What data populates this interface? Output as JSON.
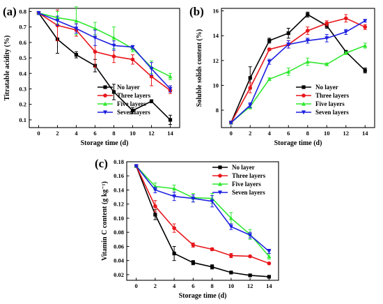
{
  "figure": {
    "legend_labels": [
      "No layer",
      "Three layers",
      "Five layers",
      "Seven layers"
    ]
  },
  "colors": {
    "No layer": "#000000",
    "Three layers": "#e8161b",
    "Five layers": "#2fe82f",
    "Seven layers": "#1c1fe0"
  },
  "chart_data": [
    {
      "type": "line",
      "panel_label": "(a)",
      "xlabel": "Storage time (d)",
      "ylabel": "Titratable acidity (%)",
      "xlim": [
        -1,
        15
      ],
      "ylim": [
        0.05,
        0.82
      ],
      "xticks": [
        "0",
        "2",
        "4",
        "6",
        "8",
        "10",
        "12",
        "14"
      ],
      "yticks": [
        "0.1",
        "0.2",
        "0.3",
        "0.4",
        "0.5",
        "0.6",
        "0.7",
        "0.8"
      ],
      "x": [
        0,
        2,
        4,
        6,
        8,
        10,
        12,
        14
      ],
      "legend_position": "bottom-right",
      "series": [
        {
          "name": "No layer",
          "values": [
            0.79,
            0.62,
            0.52,
            0.45,
            0.28,
            0.16,
            0.22,
            0.1
          ],
          "errors": [
            0.01,
            0.09,
            0.02,
            0.04,
            0.05,
            0.02,
            0.01,
            0.03
          ]
        },
        {
          "name": "Three layers",
          "values": [
            0.79,
            0.71,
            0.68,
            0.54,
            0.51,
            0.49,
            0.38,
            0.29
          ],
          "errors": [
            0.01,
            0.1,
            0.04,
            0.1,
            0.04,
            0.03,
            0.06,
            0.02
          ]
        },
        {
          "name": "Five layers",
          "values": [
            0.79,
            0.76,
            0.74,
            0.69,
            0.63,
            0.56,
            0.44,
            0.38
          ],
          "errors": [
            0.01,
            0.04,
            0.09,
            0.04,
            0.07,
            0.02,
            0.04,
            0.02
          ]
        },
        {
          "name": "Seven layers",
          "values": [
            0.79,
            0.74,
            0.69,
            0.63,
            0.58,
            0.57,
            0.43,
            0.3
          ],
          "errors": [
            0.01,
            0.03,
            0.03,
            0.05,
            0.03,
            0.01,
            0.04,
            0.02
          ]
        }
      ]
    },
    {
      "type": "line",
      "panel_label": "(b)",
      "xlabel": "Storage time (d)",
      "ylabel": "Soluble solids content (%)",
      "xlim": [
        -1,
        15
      ],
      "ylim": [
        6.6,
        16.2
      ],
      "xticks": [
        "0",
        "2",
        "4",
        "6",
        "8",
        "10",
        "12",
        "14"
      ],
      "yticks": [
        "8",
        "10",
        "12",
        "14",
        "16"
      ],
      "x": [
        0,
        2,
        4,
        6,
        8,
        10,
        12,
        14
      ],
      "legend_position": "bottom-right",
      "series": [
        {
          "name": "No layer",
          "values": [
            7.0,
            10.6,
            13.6,
            14.2,
            15.7,
            14.8,
            12.7,
            11.2
          ],
          "errors": [
            0.1,
            0.9,
            0.2,
            0.4,
            0.2,
            0.2,
            0.1,
            0.2
          ]
        },
        {
          "name": "Three layers",
          "values": [
            7.0,
            9.8,
            12.9,
            13.3,
            14.4,
            15.0,
            15.4,
            14.7
          ],
          "errors": [
            0.1,
            0.4,
            0.1,
            0.3,
            0.3,
            0.2,
            0.3,
            0.2
          ]
        },
        {
          "name": "Five layers",
          "values": [
            7.0,
            8.3,
            10.5,
            11.1,
            11.9,
            11.7,
            12.6,
            13.2
          ],
          "errors": [
            0.1,
            0.2,
            0.1,
            0.3,
            0.3,
            0.1,
            0.1,
            0.2
          ]
        },
        {
          "name": "Seven layers",
          "values": [
            7.0,
            8.4,
            11.9,
            13.3,
            13.6,
            13.8,
            14.3,
            15.2
          ],
          "errors": [
            0.1,
            0.2,
            0.2,
            0.3,
            0.2,
            0.3,
            0.2,
            0.1
          ]
        }
      ]
    },
    {
      "type": "line",
      "panel_label": "(c)",
      "xlabel": "Storage time (d)",
      "ylabel": "Vitamin C content (g kg⁻¹)",
      "xlim": [
        -1,
        15
      ],
      "ylim": [
        0.012,
        0.18
      ],
      "xticks": [
        "0",
        "2",
        "4",
        "6",
        "8",
        "10",
        "12",
        "14"
      ],
      "yticks": [
        "0.02",
        "0.04",
        "0.06",
        "0.08",
        "0.10",
        "0.12",
        "0.14",
        "0.16",
        "0.18"
      ],
      "x": [
        0,
        2,
        4,
        6,
        8,
        10,
        12,
        14
      ],
      "legend_position": "top-right",
      "series": [
        {
          "name": "No layer",
          "values": [
            0.174,
            0.105,
            0.05,
            0.037,
            0.031,
            0.023,
            0.019,
            0.017
          ],
          "errors": [
            0.001,
            0.007,
            0.01,
            0.003,
            0.003,
            0.002,
            0.001,
            0.001
          ]
        },
        {
          "name": "Three layers",
          "values": [
            0.174,
            0.117,
            0.086,
            0.062,
            0.056,
            0.047,
            0.046,
            0.036
          ],
          "errors": [
            0.001,
            0.008,
            0.006,
            0.003,
            0.002,
            0.003,
            0.001,
            0.001
          ]
        },
        {
          "name": "Five layers",
          "values": [
            0.174,
            0.145,
            0.142,
            0.129,
            0.128,
            0.1,
            0.077,
            0.046
          ],
          "errors": [
            0.001,
            0.005,
            0.005,
            0.006,
            0.007,
            0.008,
            0.007,
            0.004
          ]
        },
        {
          "name": "Seven layers",
          "values": [
            0.174,
            0.14,
            0.131,
            0.128,
            0.124,
            0.088,
            0.076,
            0.053
          ],
          "errors": [
            0.001,
            0.004,
            0.006,
            0.005,
            0.008,
            0.004,
            0.004,
            0.003
          ]
        }
      ]
    }
  ]
}
